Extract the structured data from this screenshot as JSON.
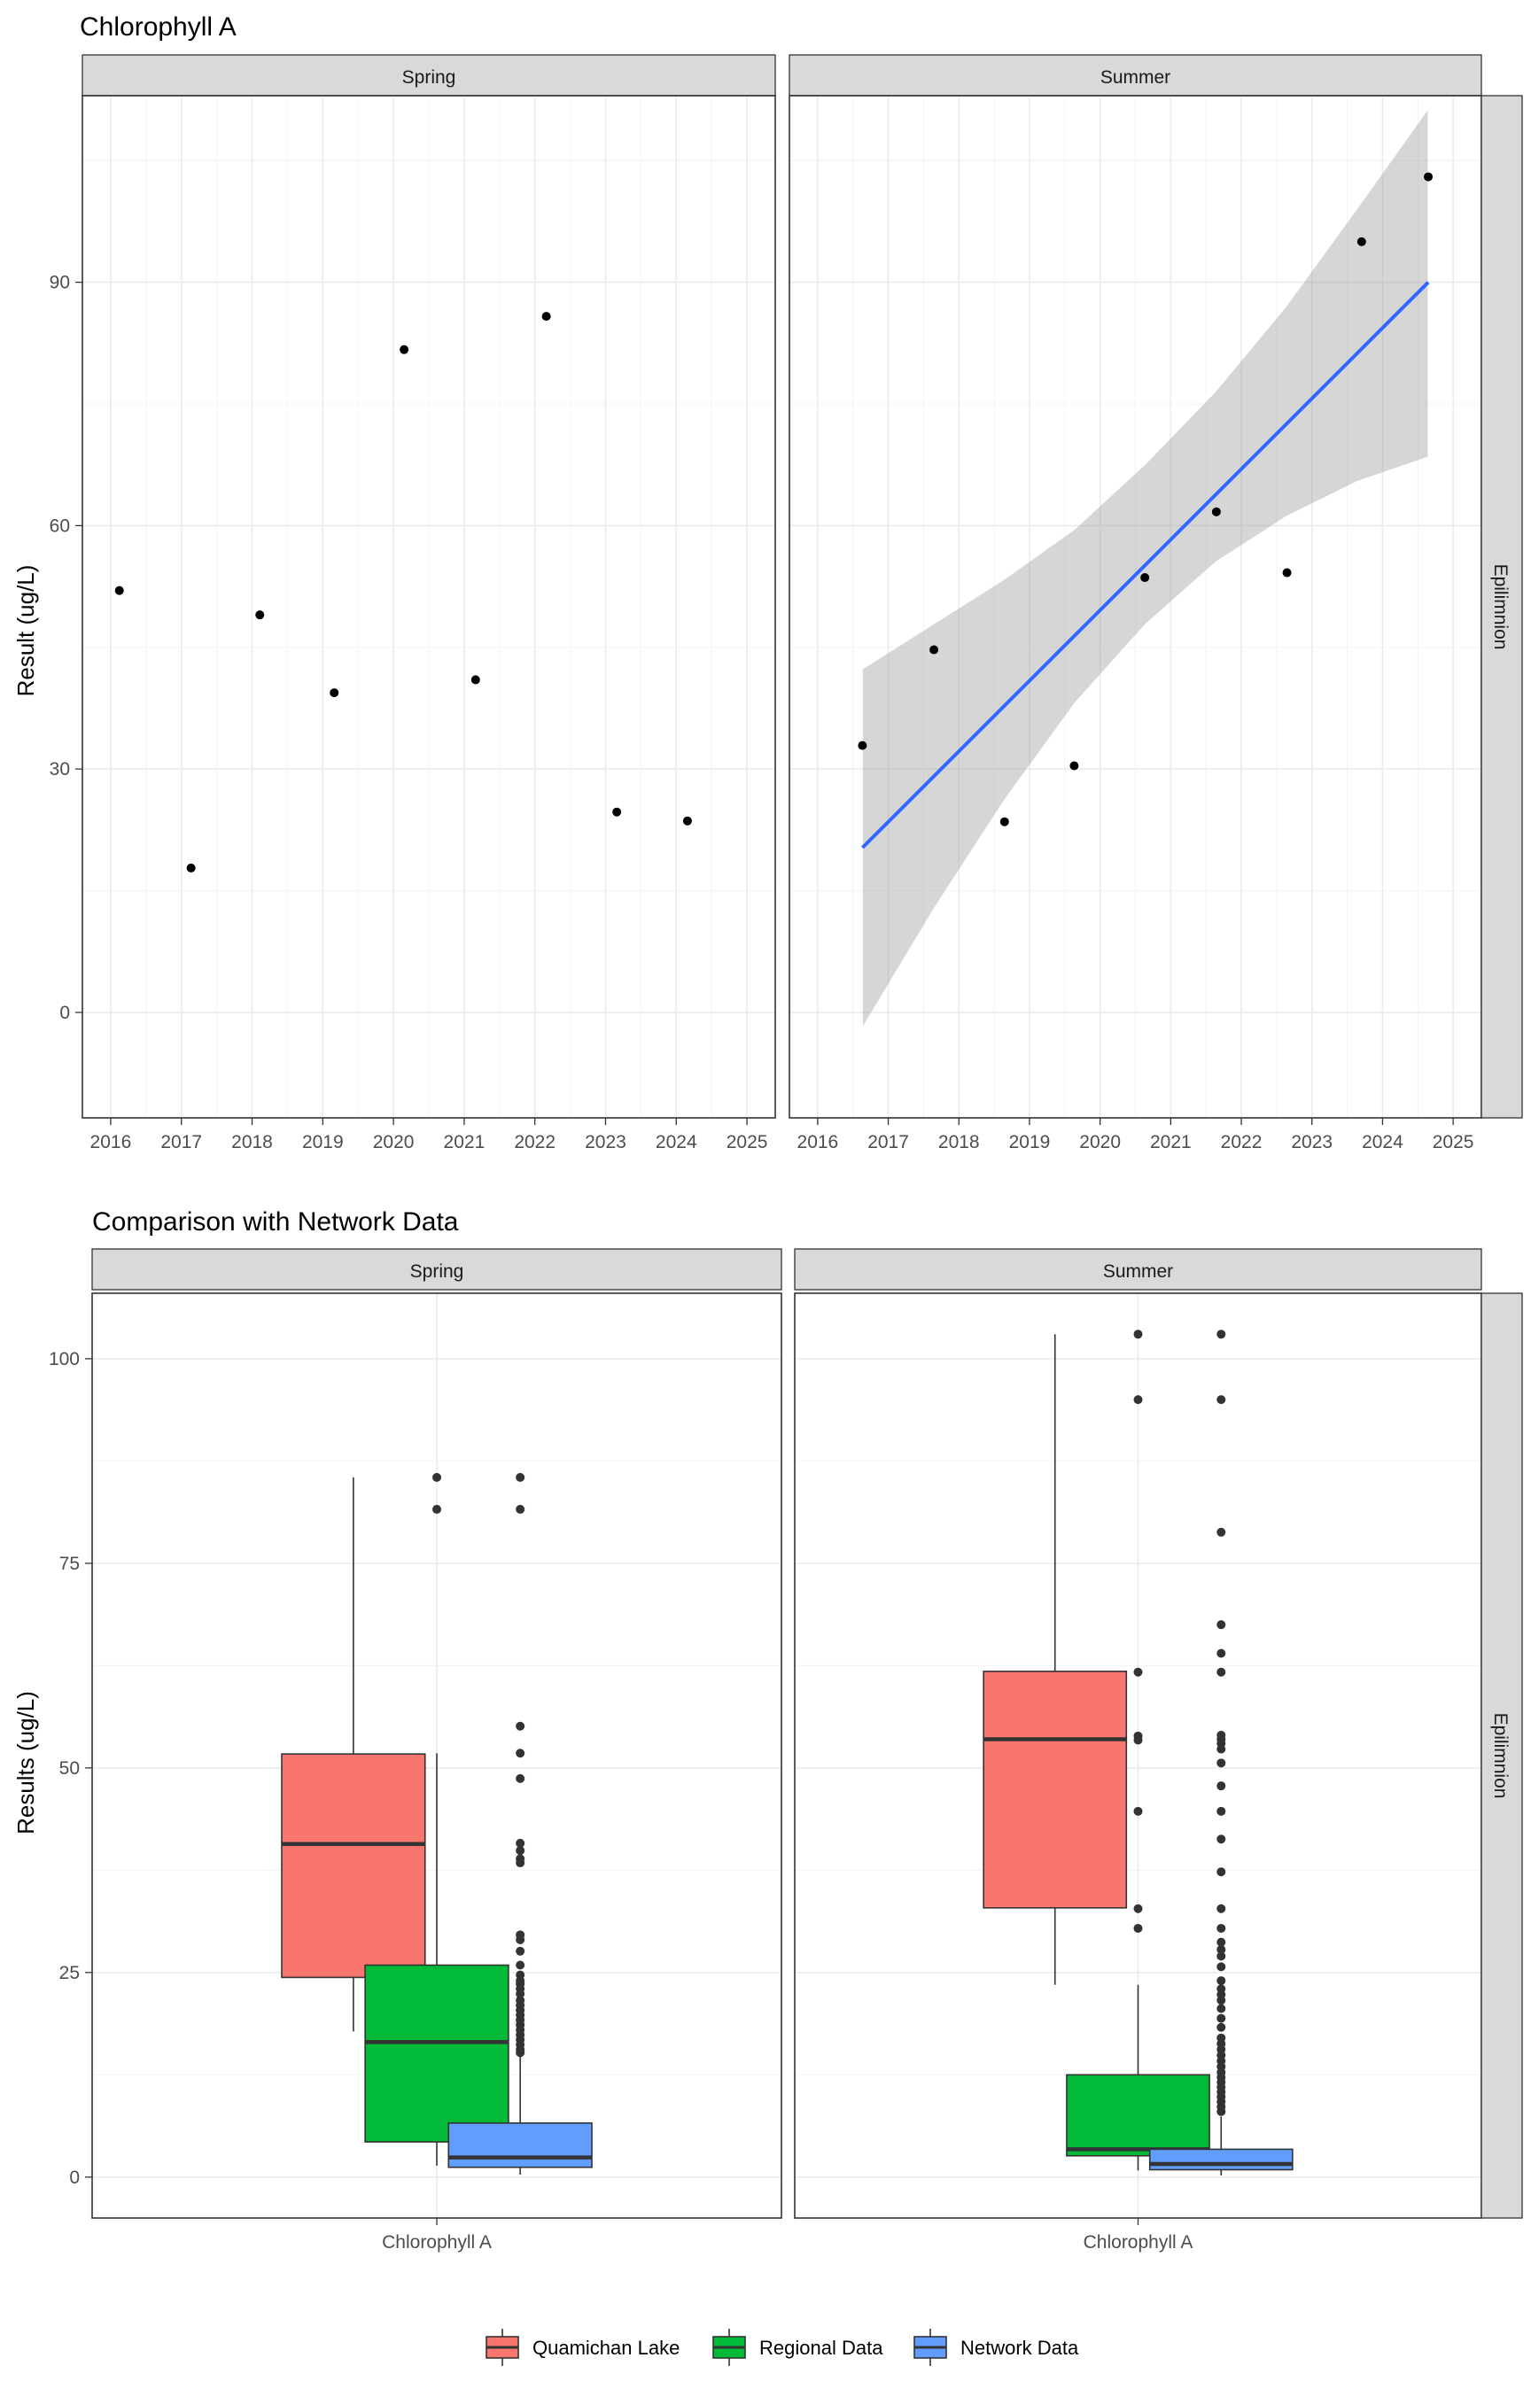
{
  "chart_data": [
    {
      "type": "scatter",
      "title": "Chlorophyll A",
      "xlabel": "",
      "ylabel": "Result (ug/L)",
      "facet_strip_right": "Epilimnion",
      "xlim": [
        2015.6,
        2025.4
      ],
      "ylim": [
        -13,
        113
      ],
      "x_ticks": [
        "2016",
        "2017",
        "2018",
        "2019",
        "2020",
        "2021",
        "2022",
        "2023",
        "2024",
        "2025"
      ],
      "y_ticks": [
        "0",
        "30",
        "60",
        "90"
      ],
      "grid": true,
      "panels": [
        {
          "label": "Spring",
          "points": [
            {
              "x": "2016-02-15",
              "y": 52
            },
            {
              "x": "2017-02-20",
              "y": 17.8
            },
            {
              "x": "2018-02-10",
              "y": 49
            },
            {
              "x": "2019-03-01",
              "y": 39.4
            },
            {
              "x": "2020-02-25",
              "y": 81.7
            },
            {
              "x": "2021-03-01",
              "y": 41
            },
            {
              "x": "2022-03-01",
              "y": 85.8
            },
            {
              "x": "2023-02-28",
              "y": 24.7
            },
            {
              "x": "2024-02-28",
              "y": 23.6
            }
          ]
        },
        {
          "label": "Summer",
          "points": [
            {
              "x": "2016-08-20",
              "y": 32.9
            },
            {
              "x": "2017-08-25",
              "y": 44.7
            },
            {
              "x": "2018-08-25",
              "y": 23.5
            },
            {
              "x": "2019-08-20",
              "y": 30.4
            },
            {
              "x": "2020-08-20",
              "y": 53.6
            },
            {
              "x": "2021-08-25",
              "y": 61.7
            },
            {
              "x": "2022-08-25",
              "y": 54.2
            },
            {
              "x": "2023-09-15",
              "y": 95
            },
            {
              "x": "2024-08-25",
              "y": 103
            }
          ],
          "trend": {
            "x0": "2016-08-20",
            "y0": 20.3,
            "x1": "2024-08-25",
            "y1": 90
          },
          "ribbon": {
            "x": [
              2016.64,
              2017.64,
              2018.64,
              2019.64,
              2020.64,
              2021.64,
              2022.64,
              2023.64,
              2024.64
            ],
            "upper": [
              42.3,
              47.8,
              53.3,
              59.5,
              67.5,
              76.5,
              87,
              99,
              111.2
            ],
            "lower": [
              -1.7,
              12.8,
              26.2,
              38.2,
              47.9,
              55.6,
              61.2,
              65.5,
              68.5
            ]
          }
        }
      ]
    },
    {
      "type": "box",
      "title": "Comparison with Network Data",
      "xlabel": "",
      "ylabel": "Results (ug/L)",
      "facet_strip_right": "Epilimnion",
      "category": "Chlorophyll A",
      "ylim": [
        -5,
        108
      ],
      "y_ticks": [
        "0",
        "25",
        "50",
        "75",
        "100"
      ],
      "legend": {
        "position": "bottom",
        "items": [
          {
            "label": "Quamichan Lake",
            "color": "#F8766D"
          },
          {
            "label": "Regional Data",
            "color": "#00BA38"
          },
          {
            "label": "Network Data",
            "color": "#619CFF"
          }
        ]
      },
      "panels": [
        {
          "label": "Spring",
          "boxes": [
            {
              "group": "Quamichan Lake",
              "min": 17.8,
              "q1": 24.4,
              "median": 40.7,
              "q3": 51.7,
              "max": 85.5,
              "outliers": []
            },
            {
              "group": "Regional Data",
              "min": 1.4,
              "q1": 4.3,
              "median": 16.5,
              "q3": 25.9,
              "max": 51.8,
              "outliers": [
                81.6,
                85.5
              ]
            },
            {
              "group": "Network Data",
              "min": 0.3,
              "q1": 1.2,
              "median": 2.4,
              "q3": 6.6,
              "max": 14.8,
              "outliers": [
                85.5,
                81.6,
                55.1,
                51.8,
                48.7,
                40.8,
                39.9,
                38.9,
                38.4,
                29.6,
                29.0,
                27.6,
                25.9,
                24.7,
                24.0,
                23.6,
                23.0,
                22.4,
                21.6,
                21.0,
                20.4,
                19.8,
                19.2,
                18.6,
                18.0,
                17.4,
                16.8,
                16.2,
                15.6,
                15.2
              ]
            }
          ]
        },
        {
          "label": "Summer",
          "boxes": [
            {
              "group": "Quamichan Lake",
              "min": 23.5,
              "q1": 32.9,
              "median": 53.5,
              "q3": 61.8,
              "max": 103,
              "outliers": []
            },
            {
              "group": "Regional Data",
              "min": 0.8,
              "q1": 2.6,
              "median": 3.4,
              "q3": 12.5,
              "max": 23.5,
              "outliers": [
                103,
                95,
                61.7,
                53.9,
                53.4,
                44.7,
                32.8,
                30.4
              ]
            },
            {
              "group": "Network Data",
              "min": 0.2,
              "q1": 0.9,
              "median": 1.6,
              "q3": 3.4,
              "max": 7.4,
              "outliers": [
                103,
                95,
                78.8,
                67.5,
                64,
                61.7,
                54,
                53.5,
                53,
                52.3,
                50.6,
                47.8,
                44.7,
                41.3,
                37.3,
                32.8,
                30.4,
                28.7,
                27.8,
                27.0,
                25.7,
                24.0,
                23.0,
                22.3,
                21.6,
                20.6,
                19.4,
                18.3,
                17.0,
                16.3,
                15.6,
                14.9,
                14.2,
                13.5,
                12.8,
                12.2,
                11.6,
                11.0,
                10.4,
                9.8,
                9.2,
                8.6,
                8.0
              ]
            }
          ]
        }
      ]
    }
  ]
}
